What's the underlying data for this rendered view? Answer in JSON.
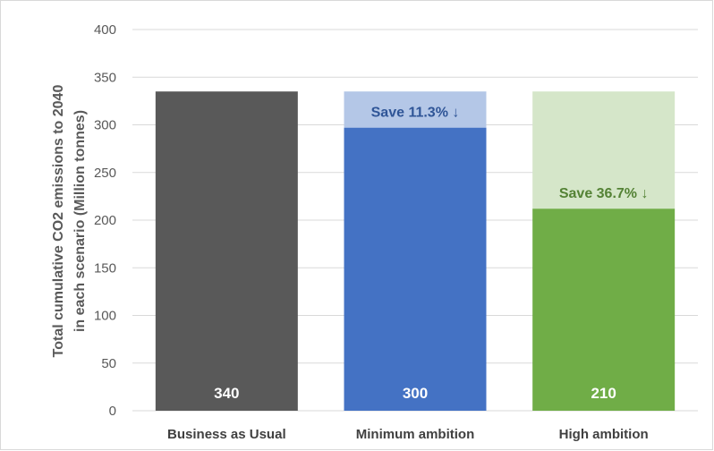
{
  "chart_data": {
    "type": "bar",
    "title": "",
    "xlabel": "",
    "ylabel_lines": [
      "Total cumulative CO2 emissions to 2040",
      "in each scenario (Million tonnes)"
    ],
    "ylim": [
      0,
      400
    ],
    "yticks": [
      0,
      50,
      100,
      150,
      200,
      250,
      300,
      350,
      400
    ],
    "grid": true,
    "categories": [
      "Business as Usual",
      "Minimum ambition",
      "High ambition"
    ],
    "values": [
      335,
      297,
      212
    ],
    "data_labels": [
      "340",
      "300",
      "210"
    ],
    "baseline": 335,
    "savings": [
      null,
      "Save 11.3% ↓",
      "Save 36.7% ↓"
    ],
    "colors": {
      "bars": [
        "#595959",
        "#4472c4",
        "#70ad47"
      ],
      "savings_fill": [
        null,
        "#b4c7e7",
        "#d5e6c9"
      ],
      "savings_text": [
        null,
        "#2f5597",
        "#548235"
      ],
      "grid": "#d9d9d9"
    }
  }
}
